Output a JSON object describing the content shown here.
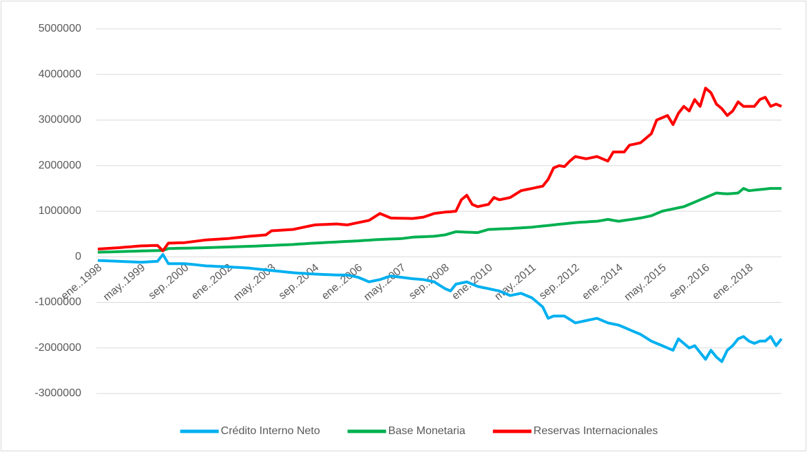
{
  "chart_data": {
    "type": "line",
    "categories": [
      "ene..1998",
      null,
      null,
      null,
      null,
      null,
      null,
      null,
      "may..1999",
      null,
      null,
      null,
      null,
      null,
      null,
      null,
      "sep..2000",
      null,
      null,
      null,
      null,
      null,
      null,
      null,
      "ene..2002",
      null,
      null,
      null,
      null,
      null,
      null,
      null,
      "may..2003",
      null,
      null,
      null,
      null,
      null,
      null,
      null,
      "sep..2004",
      null,
      null,
      null,
      null,
      null,
      null,
      null,
      "ene..2006",
      null,
      null,
      null,
      null,
      null,
      null,
      null,
      "may..2007",
      null,
      null,
      null,
      null,
      null,
      null,
      null,
      "sep..2008",
      null,
      null,
      null,
      null,
      null,
      null,
      null,
      "ene..2010",
      null,
      null,
      null,
      null,
      null,
      null,
      null,
      "may..2011",
      null,
      null,
      null,
      null,
      null,
      null,
      null,
      "sep..2012",
      null,
      null,
      null,
      null,
      null,
      null,
      null,
      "ene..2014",
      null,
      null,
      null,
      null,
      null,
      null,
      null,
      "may..2015",
      null,
      null,
      null,
      null,
      null,
      null,
      null,
      "sep..2016",
      null,
      null,
      null,
      null,
      null,
      null,
      null,
      "ene..2018",
      null,
      null,
      null,
      null,
      null,
      null
    ],
    "series": [
      {
        "name": "Crédito Interno Neto",
        "color": "#00b0f0",
        "values": [
          -80000,
          -85000,
          -90000,
          -95000,
          -100000,
          -105000,
          -110000,
          -115000,
          -120000,
          -113000,
          -107000,
          -100000,
          50000,
          -150000,
          -150000,
          -150000,
          -150000,
          -163000,
          -175000,
          -188000,
          -200000,
          -205000,
          -210000,
          -215000,
          -220000,
          -228000,
          -235000,
          -243000,
          -250000,
          -263000,
          -275000,
          -288000,
          -300000,
          -313000,
          -325000,
          -338000,
          -350000,
          -358000,
          -365000,
          -373000,
          -380000,
          -385000,
          -390000,
          -395000,
          -400000,
          -400000,
          -400000,
          -425000,
          -450000,
          -500000,
          -550000,
          -525000,
          -500000,
          -460000,
          -420000,
          -435000,
          -450000,
          -465000,
          -480000,
          -490000,
          -500000,
          -525000,
          -550000,
          -625000,
          -700000,
          -750000,
          -600000,
          -575000,
          -550000,
          -600000,
          -650000,
          -675000,
          -700000,
          -725000,
          -750000,
          -800000,
          -850000,
          -825000,
          -800000,
          -850000,
          -900000,
          -1000000,
          -1100000,
          -1350000,
          -1300000,
          -1300000,
          -1300000,
          -1375000,
          -1450000,
          -1425000,
          -1400000,
          -1375000,
          -1350000,
          -1400000,
          -1450000,
          -1475000,
          -1500000,
          -1550000,
          -1600000,
          -1650000,
          -1700000,
          -1775000,
          -1850000,
          -1900000,
          -1950000,
          -2000000,
          -2050000,
          -1800000,
          -1900000,
          -2000000,
          -1950000,
          -2100000,
          -2250000,
          -2050000,
          -2200000,
          -2300000,
          -2050000,
          -1950000,
          -1800000,
          -1750000,
          -1850000,
          -1900000,
          -1850000,
          -1850000,
          -1750000,
          -1950000,
          -1800000
        ]
      },
      {
        "name": "Base Monetaria",
        "color": "#00b050",
        "values": [
          100000,
          103000,
          107000,
          110000,
          113000,
          117000,
          120000,
          123000,
          127000,
          130000,
          133000,
          137000,
          140000,
          180000,
          183000,
          186000,
          189000,
          191000,
          194000,
          197000,
          200000,
          204000,
          208000,
          211000,
          215000,
          219000,
          223000,
          226000,
          230000,
          235000,
          240000,
          245000,
          250000,
          255000,
          260000,
          265000,
          270000,
          278000,
          285000,
          293000,
          300000,
          306000,
          313000,
          319000,
          325000,
          331000,
          338000,
          344000,
          350000,
          358000,
          365000,
          373000,
          380000,
          385000,
          390000,
          395000,
          400000,
          415000,
          430000,
          435000,
          440000,
          445000,
          450000,
          465000,
          480000,
          515000,
          550000,
          545000,
          540000,
          535000,
          530000,
          565000,
          600000,
          605000,
          610000,
          615000,
          620000,
          628000,
          635000,
          643000,
          650000,
          663000,
          675000,
          688000,
          700000,
          713000,
          725000,
          738000,
          750000,
          758000,
          765000,
          773000,
          780000,
          800000,
          820000,
          800000,
          780000,
          798000,
          815000,
          833000,
          850000,
          875000,
          900000,
          950000,
          1000000,
          1025000,
          1050000,
          1075000,
          1100000,
          1150000,
          1200000,
          1250000,
          1300000,
          1350000,
          1400000,
          1390000,
          1380000,
          1390000,
          1400000,
          1500000,
          1450000,
          1463000,
          1475000,
          1488000,
          1500000,
          1500000,
          1500000
        ]
      },
      {
        "name": "Reservas Internacionales",
        "color": "#ff0000",
        "values": [
          170000,
          178000,
          185000,
          193000,
          200000,
          210000,
          220000,
          230000,
          240000,
          243000,
          247000,
          250000,
          130000,
          300000,
          303000,
          307000,
          310000,
          325000,
          340000,
          355000,
          370000,
          378000,
          385000,
          393000,
          400000,
          413000,
          425000,
          438000,
          450000,
          460000,
          470000,
          480000,
          570000,
          578000,
          585000,
          593000,
          600000,
          625000,
          650000,
          675000,
          700000,
          705000,
          710000,
          715000,
          720000,
          710000,
          700000,
          725000,
          750000,
          775000,
          800000,
          875000,
          950000,
          900000,
          850000,
          848000,
          845000,
          843000,
          840000,
          855000,
          870000,
          910000,
          950000,
          965000,
          980000,
          990000,
          1000000,
          1250000,
          1350000,
          1150000,
          1100000,
          1125000,
          1150000,
          1300000,
          1250000,
          1275000,
          1300000,
          1375000,
          1450000,
          1475000,
          1500000,
          1525000,
          1550000,
          1700000,
          1950000,
          2000000,
          1980000,
          2100000,
          2200000,
          2175000,
          2150000,
          2175000,
          2200000,
          2150000,
          2100000,
          2300000,
          2300000,
          2300000,
          2450000,
          2475000,
          2500000,
          2600000,
          2700000,
          3000000,
          3050000,
          3100000,
          2900000,
          3150000,
          3300000,
          3200000,
          3450000,
          3300000,
          3700000,
          3600000,
          3350000,
          3250000,
          3100000,
          3200000,
          3400000,
          3300000,
          3300000,
          3300000,
          3450000,
          3500000,
          3300000,
          3350000,
          3300000
        ]
      }
    ],
    "ylim": [
      -3000000,
      5000000
    ],
    "yticks": [
      -3000000,
      -2000000,
      -1000000,
      0,
      1000000,
      2000000,
      3000000,
      4000000,
      5000000
    ],
    "grid": true,
    "legend": "bottom"
  }
}
